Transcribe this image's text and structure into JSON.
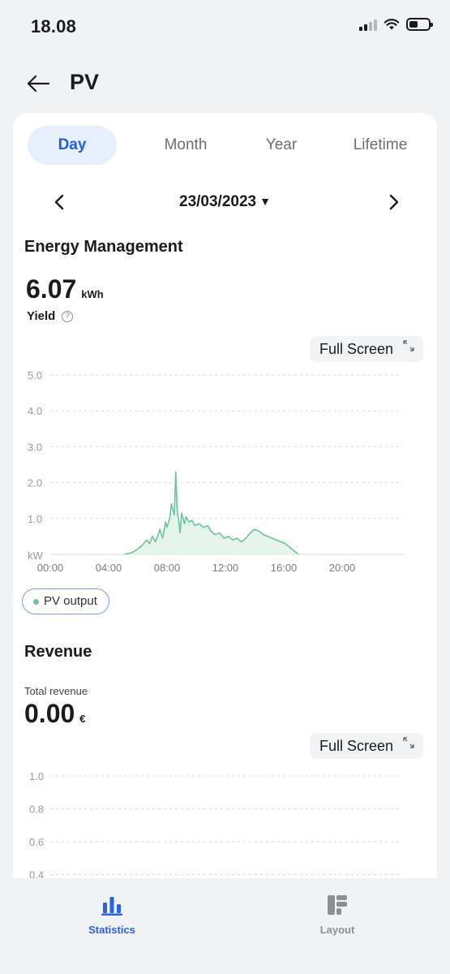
{
  "status_bar": {
    "time": "18.08"
  },
  "header": {
    "title": "PV"
  },
  "tabs": [
    {
      "label": "Day",
      "active": true
    },
    {
      "label": "Month",
      "active": false
    },
    {
      "label": "Year",
      "active": false
    },
    {
      "label": "Lifetime",
      "active": false
    }
  ],
  "date": {
    "label": "23/03/2023"
  },
  "energy": {
    "title": "Energy Management",
    "value": "6.07",
    "unit": "kWh",
    "label": "Yield",
    "fullscreen_label": "Full Screen"
  },
  "revenue": {
    "title": "Revenue",
    "label": "Total revenue",
    "value": "0.00",
    "unit": "€",
    "fullscreen_label": "Full Screen"
  },
  "legend": {
    "label": "PV output"
  },
  "colors": {
    "accent": "#2060e0",
    "series": "#6cc59a",
    "series_fill": "#e6f5ec",
    "grid": "#d9dadd",
    "axis_text": "#9a9ba0"
  },
  "chart_data": [
    {
      "type": "area",
      "unit_label": "kW",
      "ylim": [
        0,
        5
      ],
      "yticks": [
        "5.0",
        "4.0",
        "3.0",
        "2.0",
        "1.0"
      ],
      "xticks": [
        "00:00",
        "04:00",
        "08:00",
        "12:00",
        "16:00",
        "20:00"
      ],
      "xlim": [
        0,
        24
      ],
      "grid": "dashed horizontal",
      "series": [
        {
          "name": "PV output",
          "x": [
            5.1,
            5.6,
            6.0,
            6.3,
            6.6,
            6.8,
            7.0,
            7.2,
            7.4,
            7.5,
            7.7,
            7.9,
            8.0,
            8.2,
            8.3,
            8.5,
            8.6,
            8.7,
            8.8,
            8.9,
            9.0,
            9.2,
            9.3,
            9.5,
            9.7,
            9.9,
            10.2,
            10.5,
            10.8,
            11.0,
            11.3,
            11.6,
            11.9,
            12.2,
            12.5,
            12.8,
            13.1,
            13.4,
            13.7,
            14.0,
            14.3,
            14.6,
            14.9,
            15.2,
            15.5,
            15.8,
            16.1,
            16.4,
            16.7,
            17.0
          ],
          "y": [
            0.0,
            0.05,
            0.15,
            0.25,
            0.4,
            0.3,
            0.5,
            0.35,
            0.55,
            0.7,
            0.45,
            0.9,
            0.75,
            1.05,
            1.4,
            1.1,
            2.3,
            1.2,
            0.95,
            0.6,
            1.15,
            0.85,
            1.05,
            0.9,
            0.95,
            0.8,
            0.85,
            0.75,
            0.8,
            0.65,
            0.55,
            0.6,
            0.45,
            0.5,
            0.4,
            0.45,
            0.35,
            0.45,
            0.6,
            0.7,
            0.65,
            0.55,
            0.5,
            0.45,
            0.4,
            0.35,
            0.3,
            0.2,
            0.1,
            0.0
          ]
        }
      ]
    },
    {
      "type": "line",
      "ylim": [
        0,
        1
      ],
      "yticks": [
        "1.0",
        "0.8",
        "0.6",
        "0.4"
      ],
      "grid": "dashed horizontal",
      "series": []
    }
  ],
  "nav": [
    {
      "label": "Statistics",
      "icon": "bar-chart-icon",
      "active": true
    },
    {
      "label": "Layout",
      "icon": "layout-icon",
      "active": false
    }
  ]
}
